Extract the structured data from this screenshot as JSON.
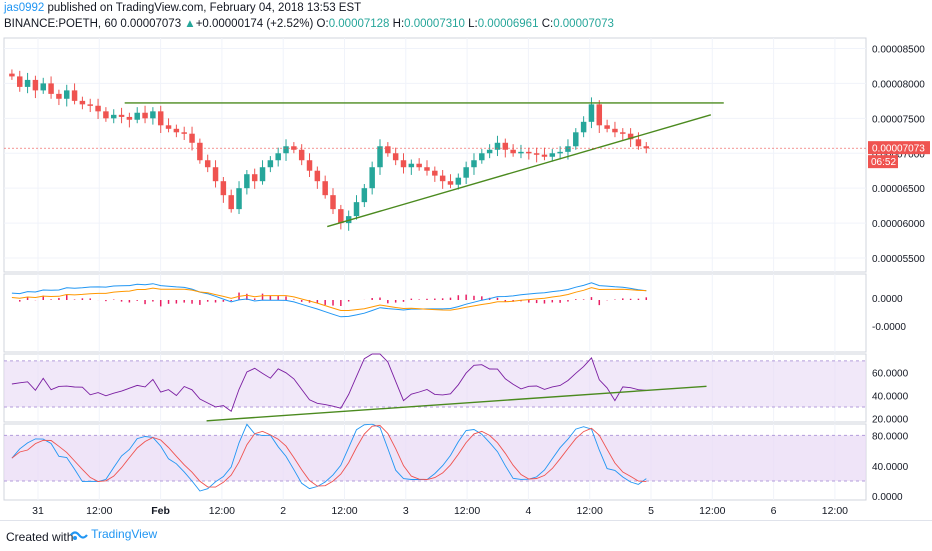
{
  "header": {
    "author": "jas0992",
    "published_text": " published on TradingView.com, February 04, 2018 13:53 EST",
    "symbol_text": "BINANCE:POETH, 60",
    "price": "0.00007073",
    "change_arrow": "▲",
    "change": "+0.00000174 (+2.52%)",
    "o_label": "O:",
    "o_value": "0.00007128",
    "h_label": "H:",
    "h_value": "0.00007310",
    "l_label": "L:",
    "l_value": "0.00006961",
    "c_label": "C:",
    "c_value": "0.00007073"
  },
  "footer": {
    "created": "Created with",
    "brand": "TradingView",
    "logo_icon": "tradingview-logo-icon"
  },
  "colors": {
    "up": "#26a69a",
    "down": "#ef5350",
    "trend": "#4b8a1f",
    "macd": "#e91e63",
    "blue": "#2196f3",
    "orange": "#ff9800",
    "rsi": "#7b1fa2",
    "rsiBand": "#e8d8f5"
  },
  "chart_data": {
    "type": "candlestick",
    "price_axis": {
      "ticks": [
        "0.00008500",
        "0.00008000",
        "0.00007500",
        "0.00007000",
        "0.00006500",
        "0.00006000",
        "0.00005500"
      ],
      "range": [
        5.3e-05,
        8.65e-05
      ]
    },
    "last_price": {
      "label": "0.00007073",
      "countdown": "06:52",
      "value": 7.073e-05
    },
    "x_axis_labels": [
      "31",
      "12:00",
      "Feb",
      "12:00",
      "2",
      "12:00",
      "3",
      "12:00",
      "4",
      "12:00",
      "5",
      "12:00",
      "6",
      "12:00"
    ],
    "candles_close_approx": [
      8.1e-05,
      7.95e-05,
      8.05e-05,
      7.9e-05,
      8e-05,
      7.85e-05,
      7.78e-05,
      7.9e-05,
      7.75e-05,
      7.7e-05,
      7.68e-05,
      7.6e-05,
      7.5e-05,
      7.55e-05,
      7.52e-05,
      7.48e-05,
      7.58e-05,
      7.5e-05,
      7.6e-05,
      7.4e-05,
      7.35e-05,
      7.3e-05,
      7.28e-05,
      7.15e-05,
      6.9e-05,
      6.8e-05,
      6.6e-05,
      6.4e-05,
      6.2e-05,
      6.5e-05,
      6.7e-05,
      6.6e-05,
      6.8e-05,
      6.9e-05,
      7e-05,
      7.1e-05,
      7.05e-05,
      6.9e-05,
      6.75e-05,
      6.6e-05,
      6.4e-05,
      6.2e-05,
      6e-05,
      6.1e-05,
      6.3e-05,
      6.5e-05,
      6.8e-05,
      7.1e-05,
      7e-05,
      6.9e-05,
      6.8e-05,
      6.85e-05,
      6.8e-05,
      6.75e-05,
      6.68e-05,
      6.6e-05,
      6.55e-05,
      6.65e-05,
      6.8e-05,
      6.9e-05,
      7e-05,
      7.05e-05,
      7.15e-05,
      7.05e-05,
      7e-05,
      7.02e-05,
      7e-05,
      6.98e-05,
      6.95e-05,
      7e-05,
      7.02e-05,
      7.1e-05,
      7.3e-05,
      7.45e-05,
      7.7e-05,
      7.4e-05,
      7.35e-05,
      7.3e-05,
      7.28e-05,
      7.2e-05,
      7.1e-05,
      7.07e-05
    ],
    "trendlines": [
      {
        "name": "resistance",
        "from": [
          0.14,
          7.72e-05
        ],
        "to": [
          0.835,
          7.72e-05
        ]
      },
      {
        "name": "support",
        "from": [
          0.375,
          5.95e-05
        ],
        "to": [
          0.82,
          7.55e-05
        ]
      }
    ],
    "macd": {
      "ticks": [
        "0.0000",
        "-0.0000"
      ]
    },
    "rsi": {
      "ticks": [
        "60.0000",
        "40.0000",
        "20.0000"
      ],
      "band": [
        30,
        70
      ],
      "range": [
        17,
        76
      ]
    },
    "stoch": {
      "ticks": [
        "80.0000",
        "40.0000",
        "0.0000"
      ],
      "band": [
        20,
        80
      ],
      "range": [
        -5,
        95
      ]
    }
  }
}
